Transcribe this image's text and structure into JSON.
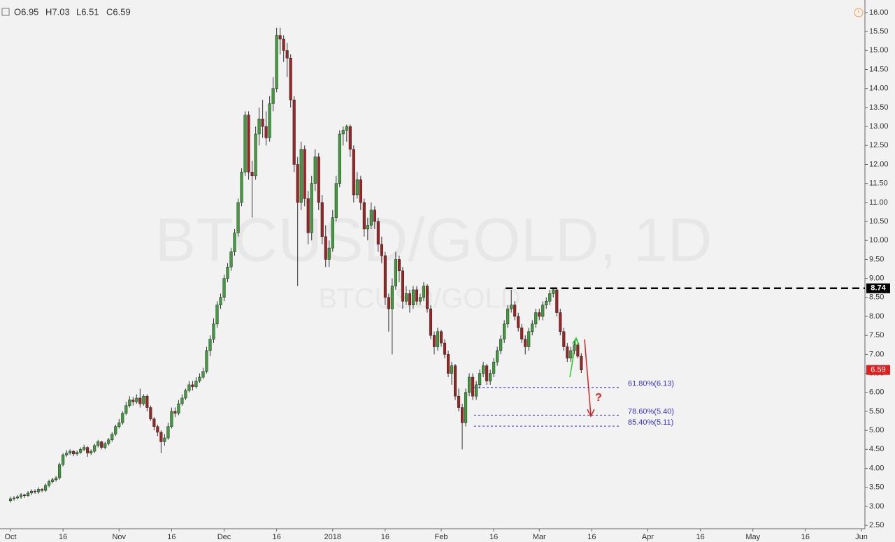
{
  "chart_data": {
    "type": "candlestick",
    "ohlc_header": [
      "O6.95",
      "H7.03",
      "L6.51",
      "C6.59"
    ],
    "watermark": "BTCUSD/GOLD, 1D",
    "watermark_small": "BTCUSD/GOLD",
    "up_color": "#3f9d3a",
    "down_color": "#9e2424",
    "xlim": [
      -3,
      244
    ],
    "ylim": [
      2.41,
      16.33
    ],
    "xticks": [
      {
        "value": 0,
        "label": "Oct"
      },
      {
        "value": 15,
        "label": "16"
      },
      {
        "value": 31,
        "label": "Nov"
      },
      {
        "value": 46,
        "label": "16"
      },
      {
        "value": 61,
        "label": "Dec"
      },
      {
        "value": 76,
        "label": "16"
      },
      {
        "value": 92,
        "label": "2018"
      },
      {
        "value": 107,
        "label": "16"
      },
      {
        "value": 123,
        "label": "Feb"
      },
      {
        "value": 138,
        "label": "16"
      },
      {
        "value": 151,
        "label": "Mar"
      },
      {
        "value": 166,
        "label": "16"
      },
      {
        "value": 182,
        "label": "Apr"
      },
      {
        "value": 197,
        "label": "16"
      },
      {
        "value": 212,
        "label": "May"
      },
      {
        "value": 227,
        "label": "16"
      },
      {
        "value": 243,
        "label": "Jun"
      }
    ],
    "yticks": [
      {
        "value": 2.5,
        "label": "2.50"
      },
      {
        "value": 3,
        "label": "3.00"
      },
      {
        "value": 3.5,
        "label": "3.50"
      },
      {
        "value": 4,
        "label": "4.00"
      },
      {
        "value": 4.5,
        "label": "4.50"
      },
      {
        "value": 5,
        "label": "5.00"
      },
      {
        "value": 5.5,
        "label": "5.50"
      },
      {
        "value": 6,
        "label": "6.00"
      },
      {
        "value": 6.5,
        "label": "6.50"
      },
      {
        "value": 7,
        "label": "7.00"
      },
      {
        "value": 7.5,
        "label": "7.50"
      },
      {
        "value": 8,
        "label": "8.00"
      },
      {
        "value": 8.5,
        "label": "8.50"
      },
      {
        "value": 9,
        "label": "9.00"
      },
      {
        "value": 9.5,
        "label": "9.50"
      },
      {
        "value": 10,
        "label": "10.00"
      },
      {
        "value": 10.5,
        "label": "10.50"
      },
      {
        "value": 11,
        "label": "11.00"
      },
      {
        "value": 11.5,
        "label": "11.50"
      },
      {
        "value": 12,
        "label": "12.00"
      },
      {
        "value": 12.5,
        "label": "12.50"
      },
      {
        "value": 13,
        "label": "13.00"
      },
      {
        "value": 13.5,
        "label": "13.50"
      },
      {
        "value": 14,
        "label": "14.00"
      },
      {
        "value": 14.5,
        "label": "14.50"
      },
      {
        "value": 15,
        "label": "15.00"
      },
      {
        "value": 15.5,
        "label": "15.50"
      },
      {
        "value": 16,
        "label": "16.00"
      }
    ],
    "resistance_level": 8.74,
    "last_price": 6.59,
    "fib_levels": [
      {
        "value": 6.13,
        "label": "61.80%(6.13)"
      },
      {
        "value": 5.4,
        "label": "78.60%(5.40)"
      },
      {
        "value": 5.11,
        "label": "85.40%(5.11)"
      }
    ],
    "annotation": "?",
    "x": [
      0,
      1,
      2,
      3,
      4,
      5,
      6,
      7,
      8,
      9,
      10,
      11,
      12,
      13,
      14,
      15,
      16,
      17,
      18,
      19,
      20,
      21,
      22,
      23,
      24,
      25,
      26,
      27,
      28,
      29,
      30,
      31,
      32,
      33,
      34,
      35,
      36,
      37,
      38,
      39,
      40,
      41,
      42,
      43,
      44,
      45,
      46,
      47,
      48,
      49,
      50,
      51,
      52,
      53,
      54,
      55,
      56,
      57,
      58,
      59,
      60,
      61,
      62,
      63,
      64,
      65,
      66,
      67,
      68,
      69,
      70,
      71,
      72,
      73,
      74,
      75,
      76,
      77,
      78,
      79,
      80,
      81,
      82,
      83,
      84,
      85,
      86,
      87,
      88,
      89,
      90,
      91,
      92,
      93,
      94,
      95,
      96,
      97,
      98,
      99,
      100,
      101,
      102,
      103,
      104,
      105,
      106,
      107,
      108,
      109,
      110,
      111,
      112,
      113,
      114,
      115,
      116,
      117,
      118,
      119,
      120,
      121,
      122,
      123,
      124,
      125,
      126,
      127,
      128,
      129,
      130,
      131,
      132,
      133,
      134,
      135,
      136,
      137,
      138,
      139,
      140,
      141,
      142,
      143,
      144,
      145,
      146,
      147,
      148,
      149,
      150,
      151,
      152,
      153,
      154,
      155,
      156,
      157,
      158,
      159,
      160,
      161,
      162,
      163
    ],
    "ohlc": [
      [
        3.15,
        3.25,
        3.1,
        3.2
      ],
      [
        3.2,
        3.27,
        3.15,
        3.22
      ],
      [
        3.22,
        3.3,
        3.18,
        3.25
      ],
      [
        3.25,
        3.35,
        3.2,
        3.3
      ],
      [
        3.3,
        3.33,
        3.22,
        3.28
      ],
      [
        3.28,
        3.4,
        3.25,
        3.35
      ],
      [
        3.35,
        3.45,
        3.3,
        3.4
      ],
      [
        3.4,
        3.45,
        3.33,
        3.38
      ],
      [
        3.38,
        3.5,
        3.33,
        3.45
      ],
      [
        3.45,
        3.48,
        3.37,
        3.42
      ],
      [
        3.42,
        3.6,
        3.38,
        3.55
      ],
      [
        3.55,
        3.7,
        3.5,
        3.65
      ],
      [
        3.65,
        3.75,
        3.6,
        3.7
      ],
      [
        3.7,
        3.8,
        3.65,
        3.75
      ],
      [
        3.75,
        4.15,
        3.7,
        4.1
      ],
      [
        4.1,
        4.4,
        4.05,
        4.35
      ],
      [
        4.35,
        4.48,
        4.3,
        4.4
      ],
      [
        4.4,
        4.5,
        4.35,
        4.45
      ],
      [
        4.45,
        4.48,
        4.32,
        4.38
      ],
      [
        4.38,
        4.47,
        4.33,
        4.42
      ],
      [
        4.42,
        4.55,
        4.38,
        4.5
      ],
      [
        4.5,
        4.62,
        4.45,
        4.55
      ],
      [
        4.55,
        4.58,
        4.3,
        4.4
      ],
      [
        4.4,
        4.5,
        4.35,
        4.45
      ],
      [
        4.45,
        4.65,
        4.4,
        4.6
      ],
      [
        4.6,
        4.75,
        4.55,
        4.7
      ],
      [
        4.7,
        4.72,
        4.5,
        4.55
      ],
      [
        4.55,
        4.7,
        4.5,
        4.65
      ],
      [
        4.65,
        4.8,
        4.6,
        4.75
      ],
      [
        4.75,
        4.95,
        4.7,
        4.9
      ],
      [
        4.9,
        5.15,
        4.85,
        5.1
      ],
      [
        5.1,
        5.3,
        5.05,
        5.2
      ],
      [
        5.2,
        5.5,
        5.15,
        5.45
      ],
      [
        5.45,
        5.75,
        5.4,
        5.65
      ],
      [
        5.65,
        5.9,
        5.6,
        5.8
      ],
      [
        5.8,
        5.88,
        5.65,
        5.75
      ],
      [
        5.75,
        5.95,
        5.7,
        5.85
      ],
      [
        5.85,
        6.1,
        5.6,
        5.7
      ],
      [
        5.7,
        5.95,
        5.65,
        5.9
      ],
      [
        5.9,
        5.95,
        5.5,
        5.6
      ],
      [
        5.6,
        5.65,
        5.25,
        5.3
      ],
      [
        5.3,
        5.35,
        5.0,
        5.1
      ],
      [
        5.1,
        5.15,
        4.85,
        4.95
      ],
      [
        4.95,
        5.0,
        4.4,
        4.7
      ],
      [
        4.7,
        4.9,
        4.6,
        4.8
      ],
      [
        4.8,
        5.2,
        4.75,
        5.1
      ],
      [
        5.1,
        5.6,
        5.05,
        5.5
      ],
      [
        5.5,
        5.6,
        5.35,
        5.45
      ],
      [
        5.45,
        5.8,
        5.4,
        5.7
      ],
      [
        5.7,
        5.95,
        5.65,
        5.85
      ],
      [
        5.85,
        6.1,
        5.8,
        6.05
      ],
      [
        6.05,
        6.3,
        6.0,
        6.2
      ],
      [
        6.2,
        6.3,
        6.05,
        6.15
      ],
      [
        6.15,
        6.4,
        6.1,
        6.3
      ],
      [
        6.3,
        6.5,
        6.25,
        6.4
      ],
      [
        6.4,
        6.65,
        6.35,
        6.55
      ],
      [
        6.55,
        7.2,
        6.5,
        7.1
      ],
      [
        7.1,
        7.5,
        6.95,
        7.4
      ],
      [
        7.4,
        7.95,
        7.3,
        7.8
      ],
      [
        7.8,
        8.4,
        7.7,
        8.3
      ],
      [
        8.3,
        8.6,
        8.2,
        8.5
      ],
      [
        8.5,
        9.1,
        8.4,
        9.0
      ],
      [
        9.0,
        9.4,
        8.9,
        9.3
      ],
      [
        9.3,
        9.8,
        9.2,
        9.7
      ],
      [
        9.7,
        10.3,
        9.6,
        10.2
      ],
      [
        10.2,
        11.1,
        10.1,
        11.0
      ],
      [
        11.0,
        11.9,
        10.9,
        11.8
      ],
      [
        11.8,
        13.4,
        11.7,
        13.3
      ],
      [
        13.3,
        13.4,
        11.6,
        11.8
      ],
      [
        11.8,
        12.1,
        10.6,
        11.7
      ],
      [
        11.7,
        13.0,
        11.6,
        12.8
      ],
      [
        12.8,
        13.5,
        12.5,
        13.2
      ],
      [
        13.2,
        13.7,
        12.7,
        13.0
      ],
      [
        13.0,
        13.4,
        12.5,
        12.7
      ],
      [
        12.7,
        13.8,
        12.6,
        13.6
      ],
      [
        13.6,
        14.3,
        13.4,
        14.0
      ],
      [
        14.0,
        15.6,
        13.9,
        15.4
      ],
      [
        15.4,
        15.6,
        14.9,
        15.3
      ],
      [
        15.3,
        15.4,
        14.7,
        15.0
      ],
      [
        15.0,
        15.2,
        14.3,
        14.8
      ],
      [
        14.8,
        14.9,
        13.5,
        13.7
      ],
      [
        13.7,
        13.8,
        11.8,
        12.0
      ],
      [
        12.0,
        12.2,
        8.8,
        11.0
      ],
      [
        11.0,
        12.6,
        10.8,
        12.4
      ],
      [
        12.4,
        12.5,
        10.9,
        11.1
      ],
      [
        11.1,
        11.3,
        9.9,
        10.2
      ],
      [
        10.2,
        11.7,
        10.0,
        11.5
      ],
      [
        11.5,
        12.4,
        11.3,
        12.2
      ],
      [
        12.2,
        12.3,
        10.8,
        11.0
      ],
      [
        11.0,
        11.2,
        9.9,
        10.1
      ],
      [
        10.1,
        10.4,
        9.3,
        9.5
      ],
      [
        9.5,
        10.0,
        9.3,
        9.8
      ],
      [
        9.8,
        10.8,
        9.7,
        10.6
      ],
      [
        10.6,
        11.7,
        10.5,
        11.5
      ],
      [
        11.5,
        12.9,
        11.4,
        12.8
      ],
      [
        12.8,
        13.0,
        12.5,
        12.9
      ],
      [
        12.9,
        13.05,
        12.6,
        13.0
      ],
      [
        13.0,
        13.05,
        12.2,
        12.4
      ],
      [
        12.4,
        12.5,
        11.0,
        11.2
      ],
      [
        11.2,
        11.8,
        11.1,
        11.6
      ],
      [
        11.6,
        11.7,
        10.8,
        11.0
      ],
      [
        11.0,
        11.1,
        10.1,
        10.3
      ],
      [
        10.3,
        10.6,
        10.0,
        10.4
      ],
      [
        10.4,
        11.0,
        10.3,
        10.8
      ],
      [
        10.8,
        10.9,
        10.3,
        10.5
      ],
      [
        10.5,
        10.6,
        9.7,
        9.9
      ],
      [
        9.9,
        10.1,
        9.4,
        9.6
      ],
      [
        9.6,
        9.7,
        8.3,
        8.5
      ],
      [
        8.5,
        8.6,
        7.6,
        8.2
      ],
      [
        8.2,
        9.0,
        7.0,
        8.8
      ],
      [
        8.8,
        9.7,
        8.7,
        9.5
      ],
      [
        9.5,
        9.6,
        8.9,
        9.2
      ],
      [
        9.2,
        9.3,
        8.2,
        8.4
      ],
      [
        8.4,
        8.8,
        8.3,
        8.6
      ],
      [
        8.6,
        8.7,
        8.1,
        8.3
      ],
      [
        8.3,
        8.8,
        8.2,
        8.7
      ],
      [
        8.7,
        8.8,
        8.3,
        8.4
      ],
      [
        8.4,
        8.6,
        8.3,
        8.5
      ],
      [
        8.5,
        8.9,
        8.4,
        8.8
      ],
      [
        8.8,
        8.85,
        8.1,
        8.2
      ],
      [
        8.2,
        8.3,
        7.4,
        7.5
      ],
      [
        7.5,
        7.6,
        7.0,
        7.2
      ],
      [
        7.2,
        7.7,
        7.1,
        7.6
      ],
      [
        7.6,
        7.65,
        7.2,
        7.3
      ],
      [
        7.3,
        7.4,
        6.9,
        7.0
      ],
      [
        7.0,
        7.1,
        6.4,
        6.5
      ],
      [
        6.5,
        6.8,
        6.2,
        6.7
      ],
      [
        6.7,
        6.75,
        5.8,
        5.9
      ],
      [
        5.9,
        6.1,
        5.5,
        5.6
      ],
      [
        5.6,
        5.7,
        4.5,
        5.2
      ],
      [
        5.2,
        6.1,
        5.1,
        6.0
      ],
      [
        6.0,
        6.5,
        5.9,
        6.4
      ],
      [
        6.4,
        6.5,
        5.8,
        5.9
      ],
      [
        5.9,
        6.3,
        5.8,
        6.2
      ],
      [
        6.2,
        6.6,
        6.1,
        6.5
      ],
      [
        6.5,
        6.8,
        6.4,
        6.7
      ],
      [
        6.7,
        6.75,
        6.2,
        6.3
      ],
      [
        6.3,
        6.6,
        6.2,
        6.5
      ],
      [
        6.5,
        6.9,
        6.4,
        6.8
      ],
      [
        6.8,
        7.2,
        6.7,
        7.1
      ],
      [
        7.1,
        7.5,
        7.0,
        7.4
      ],
      [
        7.4,
        7.9,
        7.3,
        7.8
      ],
      [
        7.8,
        8.3,
        7.7,
        8.2
      ],
      [
        8.2,
        8.7,
        8.1,
        8.3
      ],
      [
        8.3,
        8.4,
        7.9,
        8.0
      ],
      [
        8.0,
        8.1,
        7.6,
        7.7
      ],
      [
        7.7,
        7.8,
        7.3,
        7.4
      ],
      [
        7.4,
        7.5,
        7.0,
        7.2
      ],
      [
        7.2,
        7.7,
        7.1,
        7.6
      ],
      [
        7.6,
        7.9,
        7.5,
        7.8
      ],
      [
        7.8,
        8.2,
        7.7,
        8.1
      ],
      [
        8.1,
        8.2,
        7.9,
        8.0
      ],
      [
        8.0,
        8.4,
        7.9,
        8.3
      ],
      [
        8.3,
        8.5,
        8.2,
        8.4
      ],
      [
        8.4,
        8.7,
        8.3,
        8.6
      ],
      [
        8.6,
        8.74,
        8.5,
        8.7
      ],
      [
        8.7,
        8.72,
        8.0,
        8.1
      ],
      [
        8.1,
        8.2,
        7.5,
        7.6
      ],
      [
        7.6,
        7.7,
        7.1,
        7.2
      ],
      [
        7.2,
        7.3,
        6.8,
        6.9
      ],
      [
        6.9,
        7.2,
        6.8,
        7.1
      ],
      [
        7.1,
        7.35,
        7.0,
        7.25
      ],
      [
        7.25,
        7.3,
        6.9,
        6.95
      ],
      [
        6.95,
        7.03,
        6.51,
        6.59
      ]
    ]
  }
}
